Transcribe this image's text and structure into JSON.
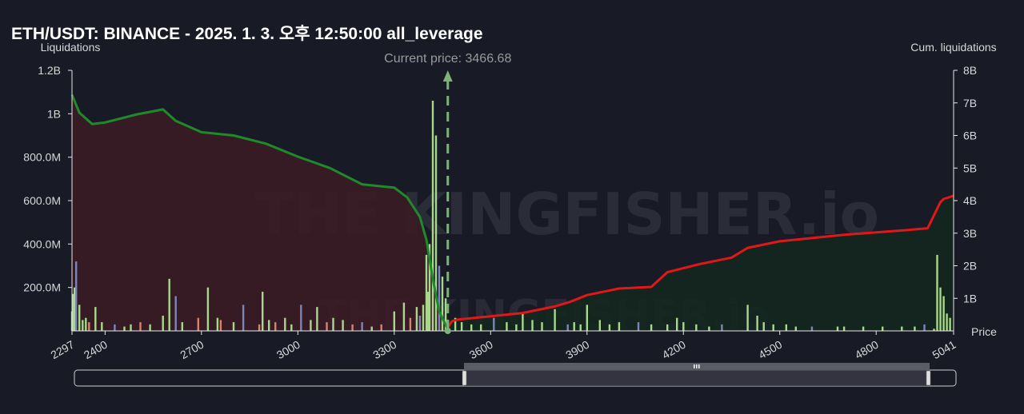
{
  "chart_data": {
    "type": "bar",
    "title": "ETH/USDT: BINANCE - 2025. 1. 3. 오후 12:50:00 all_leverage",
    "ylabel": "Liquidations",
    "y2label": "Cum. liquidations",
    "xlabel": "Price",
    "current_price_label": "Current price: 3466.68",
    "current_price": 3466.68,
    "watermark": "THE KINGFISHER.io",
    "xlim": [
      2297,
      5041
    ],
    "ylim": [
      0,
      1200000000
    ],
    "y2lim": [
      0,
      8000000000
    ],
    "x_ticks": [
      "2297",
      "2400",
      "2700",
      "3000",
      "3300",
      "3600",
      "3900",
      "4200",
      "4500",
      "4800",
      "5041"
    ],
    "y_ticks": [
      "200.0M",
      "400.0M",
      "600.0M",
      "800.0M",
      "1B",
      "1.2B"
    ],
    "y2_ticks": [
      "1B",
      "2B",
      "3B",
      "4B",
      "5B",
      "6B",
      "7B",
      "8B"
    ],
    "grid": false,
    "colors": {
      "background": "#181a26",
      "short_cum_line": "#1f8a2a",
      "short_area": "#3a1c26",
      "long_cum_line": "#e01818",
      "long_area": "#14261e",
      "bars_green": "#a8d88a",
      "bars_orange": "#d9826a",
      "bars_blue": "#7a86b8",
      "current_price_line": "#7fb27a"
    },
    "series": [
      {
        "name": "Cum. liquidations",
        "side": "below current price",
        "x": [
          2297,
          2320,
          2360,
          2400,
          2500,
          2580,
          2620,
          2700,
          2800,
          2900,
          3000,
          3100,
          3200,
          3250,
          3300,
          3340,
          3380,
          3400,
          3420,
          3440,
          3466.68
        ],
        "values": [
          7250000000.0,
          6700000000.0,
          6350000000.0,
          6400000000.0,
          6650000000.0,
          6800000000.0,
          6450000000.0,
          6100000000.0,
          6000000000.0,
          5750000000.0,
          5350000000.0,
          5000000000.0,
          4500000000.0,
          4450000000.0,
          4400000000.0,
          4100000000.0,
          3500000000.0,
          2800000000.0,
          1600000000.0,
          600000000.0,
          50000000.0
        ]
      },
      {
        "name": "Cum. liquidations",
        "side": "above current price",
        "x": [
          3466.68,
          3480,
          3500,
          3600,
          3700,
          3800,
          3850,
          3900,
          4000,
          4100,
          4150,
          4250,
          4350,
          4400,
          4500,
          4700,
          4900,
          4960,
          4990,
          5000,
          5010,
          5041
        ],
        "values": [
          100000000.0,
          300000000.0,
          350000000.0,
          450000000.0,
          550000000.0,
          750000000.0,
          900000000.0,
          1100000000.0,
          1300000000.0,
          1350000000.0,
          1800000000.0,
          2050000000.0,
          2250000000.0,
          2550000000.0,
          2750000000.0,
          2950000000.0,
          3100000000.0,
          3150000000.0,
          3750000000.0,
          3950000000.0,
          4050000000.0,
          4150000000.0
        ]
      },
      {
        "name": "Liquidations",
        "x": [
          2297,
          2300,
          2305,
          2310,
          2320,
          2330,
          2340,
          2350,
          2370,
          2390,
          2430,
          2460,
          2480,
          2510,
          2540,
          2580,
          2600,
          2620,
          2640,
          2690,
          2720,
          2750,
          2760,
          2800,
          2830,
          2880,
          2890,
          2910,
          2930,
          2960,
          2980,
          3010,
          3040,
          3060,
          3090,
          3110,
          3140,
          3170,
          3200,
          3230,
          3260,
          3300,
          3330,
          3350,
          3370,
          3380,
          3390,
          3400,
          3405,
          3410,
          3420,
          3430,
          3440,
          3450,
          3460,
          3490,
          3510,
          3540,
          3570,
          3610,
          3650,
          3680,
          3700,
          3730,
          3760,
          3800,
          3840,
          3860,
          3880,
          3900,
          3940,
          3970,
          4000,
          4060,
          4100,
          4150,
          4180,
          4200,
          4240,
          4280,
          4320,
          4400,
          4430,
          4450,
          4480,
          4520,
          4550,
          4600,
          4680,
          4700,
          4760,
          4820,
          4880,
          4920,
          4950,
          4980,
          4990,
          5000,
          5010,
          5020,
          5030
        ],
        "values": [
          90000000.0,
          170000000.0,
          200000000.0,
          320000000.0,
          120000000.0,
          50000000.0,
          60000000.0,
          40000000.0,
          110000000.0,
          40000000.0,
          30000000.0,
          20000000.0,
          30000000.0,
          40000000.0,
          30000000.0,
          70000000.0,
          240000000.0,
          160000000.0,
          40000000.0,
          60000000.0,
          200000000.0,
          60000000.0,
          50000000.0,
          40000000.0,
          120000000.0,
          30000000.0,
          180000000.0,
          50000000.0,
          40000000.0,
          60000000.0,
          30000000.0,
          120000000.0,
          50000000.0,
          110000000.0,
          40000000.0,
          60000000.0,
          50000000.0,
          30000000.0,
          40000000.0,
          20000000.0,
          30000000.0,
          90000000.0,
          130000000.0,
          60000000.0,
          110000000.0,
          70000000.0,
          120000000.0,
          350000000.0,
          180000000.0,
          400000000.0,
          1060000000.0,
          900000000.0,
          300000000.0,
          250000000.0,
          150000000.0,
          60000000.0,
          40000000.0,
          30000000.0,
          30000000.0,
          60000000.0,
          40000000.0,
          30000000.0,
          80000000.0,
          50000000.0,
          40000000.0,
          100000000.0,
          30000000.0,
          40000000.0,
          30000000.0,
          120000000.0,
          50000000.0,
          30000000.0,
          40000000.0,
          40000000.0,
          30000000.0,
          30000000.0,
          60000000.0,
          40000000.0,
          30000000.0,
          20000000.0,
          30000000.0,
          120000000.0,
          70000000.0,
          40000000.0,
          30000000.0,
          30000000.0,
          20000000.0,
          20000000.0,
          20000000.0,
          20000000.0,
          20000000.0,
          20000000.0,
          20000000.0,
          20000000.0,
          30000000.0,
          10000000.0,
          350000000.0,
          200000000.0,
          160000000.0,
          80000000.0,
          60000000.0
        ]
      }
    ]
  }
}
